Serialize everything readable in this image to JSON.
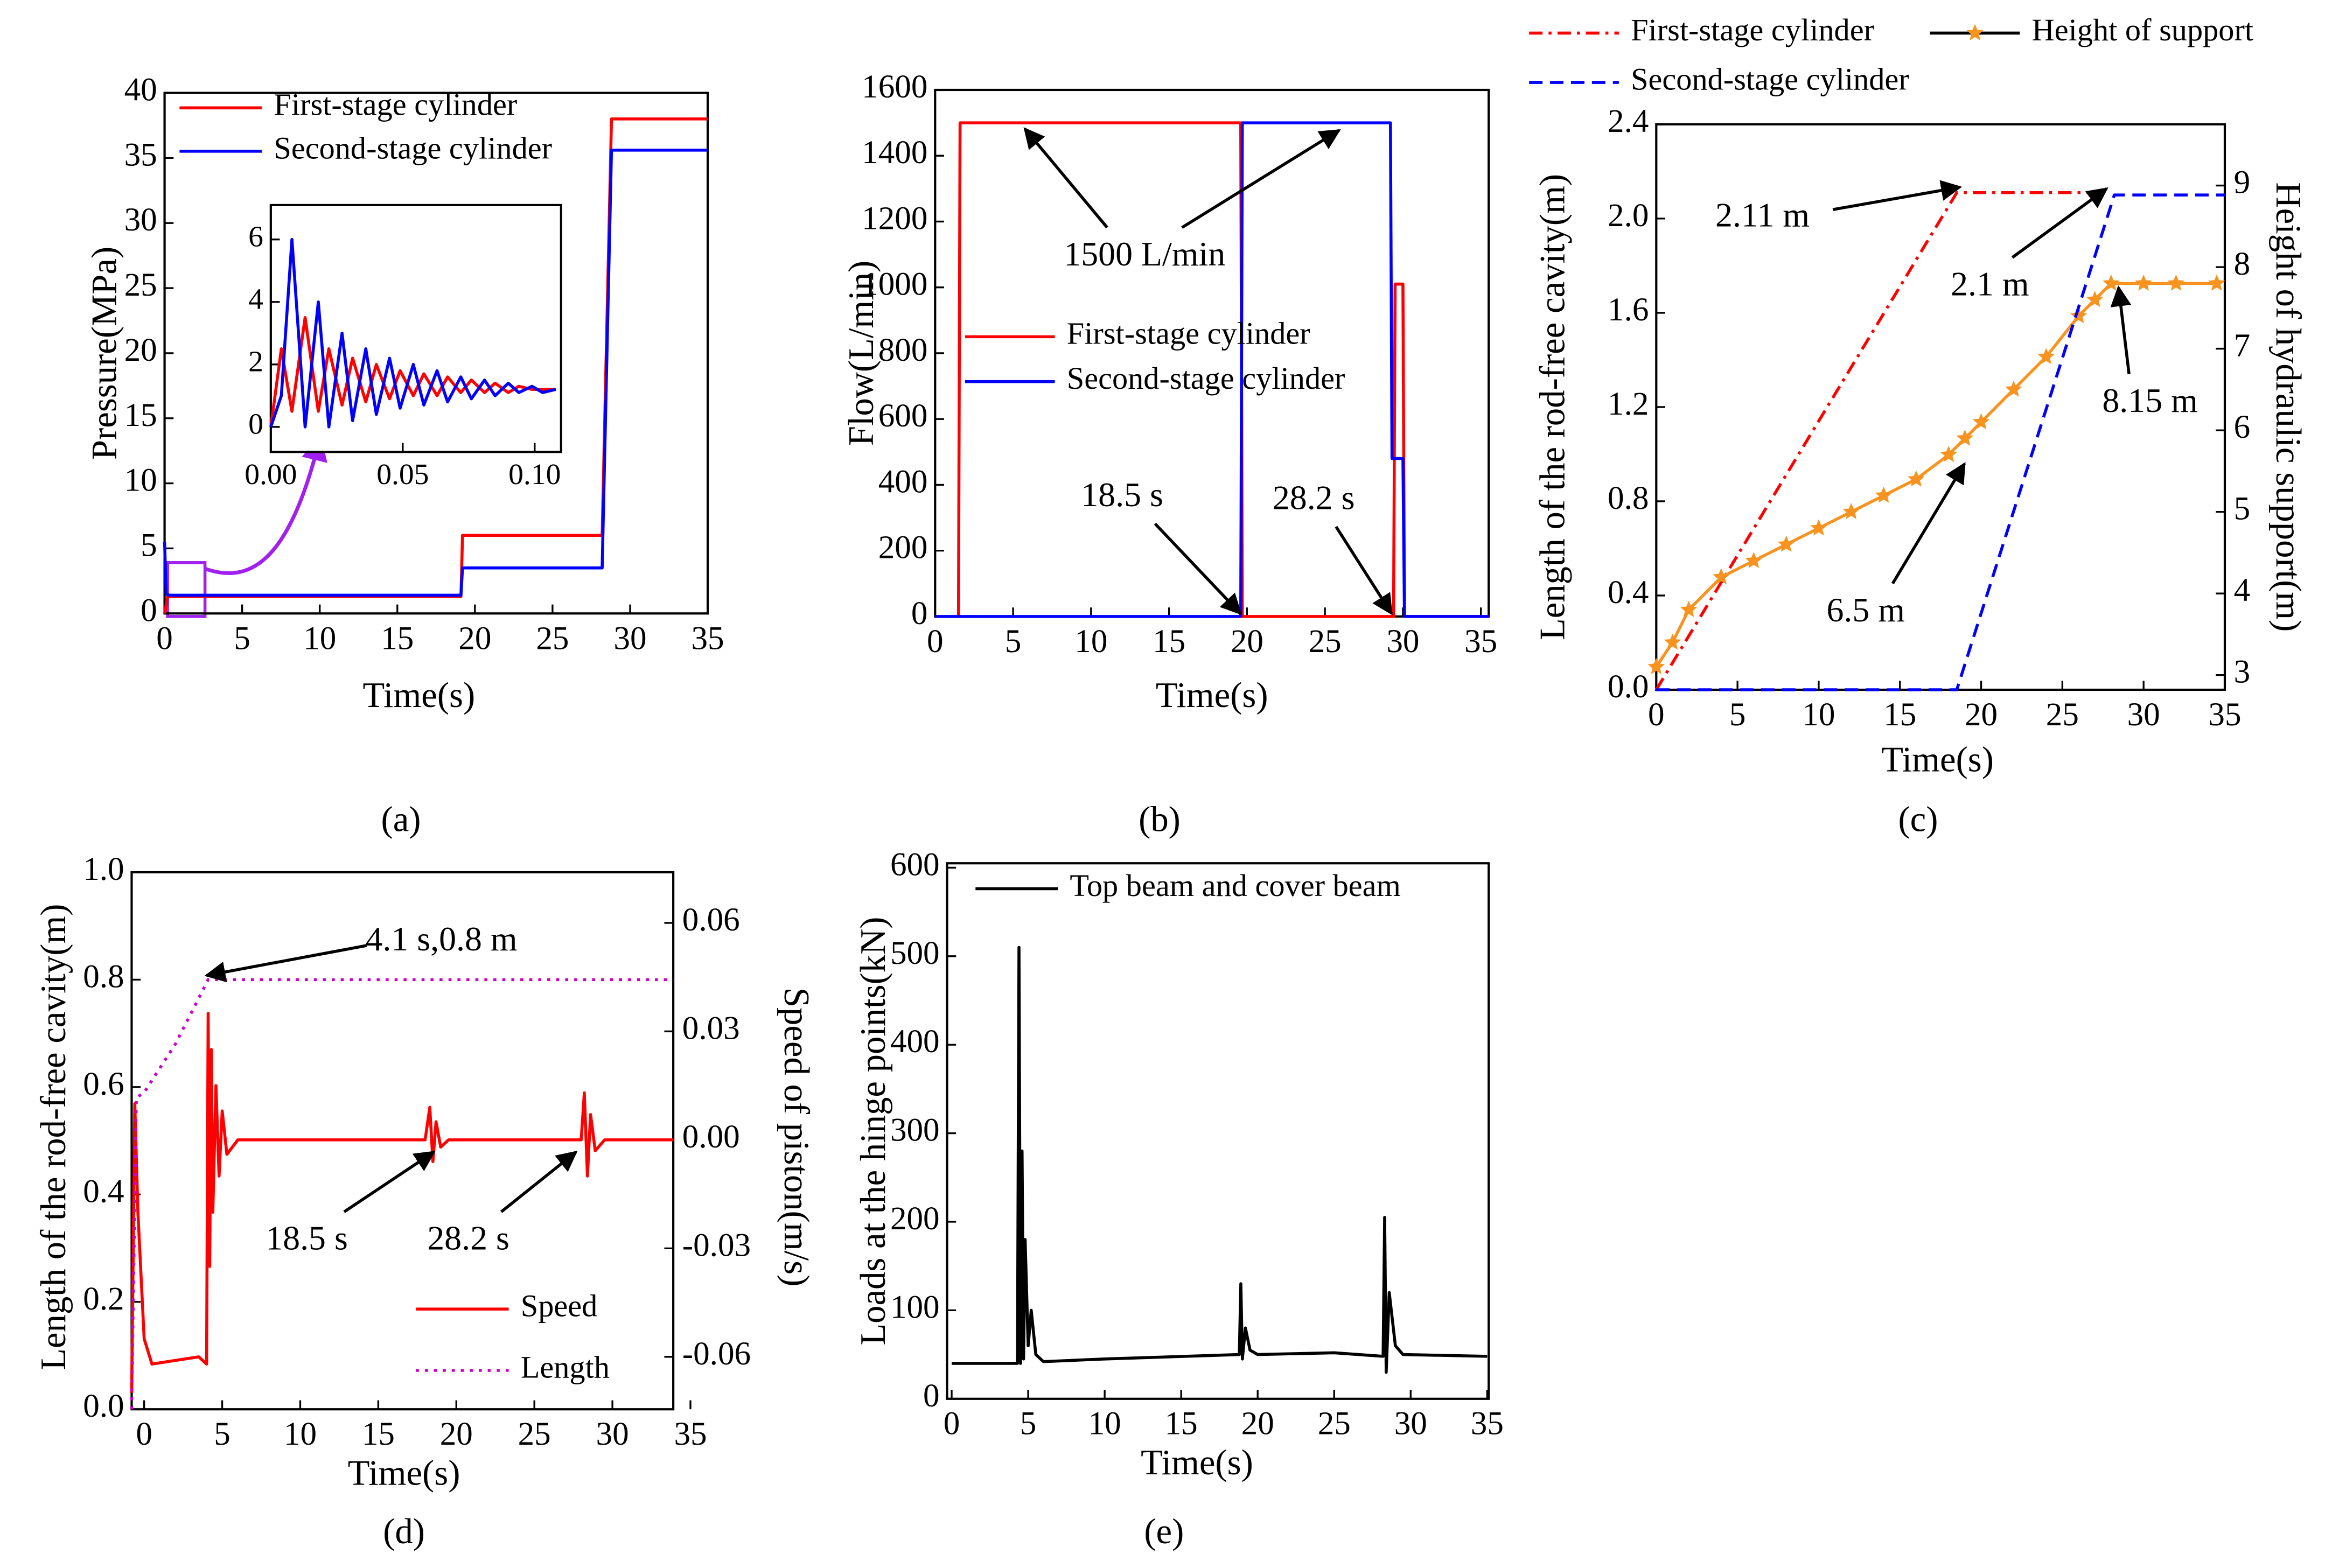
{
  "chart_data": [
    {
      "type": "line",
      "panel_label": "(a)",
      "xlabel": "Time(s)",
      "ylabel": "Pressure(MPa)",
      "xlim": [
        0,
        35
      ],
      "ylim": [
        0,
        40
      ],
      "xticks": [
        0,
        5,
        10,
        15,
        20,
        25,
        30,
        35
      ],
      "yticks": [
        0,
        5,
        10,
        15,
        20,
        25,
        30,
        35,
        40
      ],
      "legend": "upper left",
      "series": [
        {
          "name": "First-stage cylinder",
          "color": "#ff0000",
          "x": [
            0,
            0.2,
            19.1,
            19.2,
            28.2,
            28.8,
            35
          ],
          "values": [
            0,
            1.3,
            1.3,
            6,
            6,
            38,
            38
          ]
        },
        {
          "name": "Second-stage cylinder",
          "color": "#0000ff",
          "x": [
            0,
            0.1,
            0.3,
            19.1,
            19.2,
            28.2,
            28.8,
            35
          ],
          "values": [
            5.5,
            1.5,
            1.4,
            1.4,
            3.5,
            3.5,
            35.6,
            35.6
          ]
        }
      ],
      "inset": {
        "xlim": [
          0,
          0.11
        ],
        "ylim": [
          -0.8,
          7.1
        ],
        "xticks": [
          {
            "value": 0,
            "label": "0.00"
          },
          {
            "value": 0.05,
            "label": "0.05"
          },
          {
            "value": 0.1,
            "label": "0.10"
          }
        ],
        "yticks": [
          0,
          2,
          4,
          6
        ],
        "series": [
          {
            "color": "#ff0000",
            "x": [
              0,
              0.004,
              0.008,
              0.013,
              0.018,
              0.022,
              0.027,
              0.031,
              0.036,
              0.04,
              0.045,
              0.049,
              0.054,
              0.058,
              0.063,
              0.067,
              0.072,
              0.076,
              0.081,
              0.085,
              0.09,
              0.094,
              0.099,
              0.103,
              0.108
            ],
            "values": [
              0,
              2.5,
              0.5,
              3.5,
              0.5,
              2.5,
              0.7,
              2.2,
              0.8,
              2,
              0.9,
              1.8,
              1,
              1.7,
              1,
              1.6,
              1.1,
              1.5,
              1.1,
              1.4,
              1.1,
              1.3,
              1.2,
              1.2,
              1.2
            ]
          },
          {
            "color": "#0000ff",
            "x": [
              0,
              0.004,
              0.008,
              0.013,
              0.018,
              0.022,
              0.027,
              0.031,
              0.036,
              0.04,
              0.045,
              0.049,
              0.054,
              0.058,
              0.063,
              0.067,
              0.072,
              0.076,
              0.081,
              0.085,
              0.09,
              0.094,
              0.099,
              0.103,
              0.108
            ],
            "values": [
              0,
              1,
              6,
              0,
              4,
              0,
              3,
              0.2,
              2.5,
              0.4,
              2.2,
              0.6,
              2,
              0.7,
              1.8,
              0.8,
              1.6,
              0.9,
              1.5,
              1,
              1.4,
              1.1,
              1.3,
              1.1,
              1.2
            ]
          }
        ]
      }
    },
    {
      "type": "line",
      "panel_label": "(b)",
      "xlabel": "Time(s)",
      "ylabel": "Flow(L/min)",
      "xlim": [
        0,
        35.5
      ],
      "ylim": [
        0,
        1600
      ],
      "xticks": [
        0,
        5,
        10,
        15,
        20,
        25,
        30,
        35
      ],
      "yticks": [
        0,
        200,
        400,
        600,
        800,
        1000,
        1200,
        1400,
        1600
      ],
      "legend": "center left",
      "series": [
        {
          "name": "First-stage cylinder",
          "color": "#ff0000",
          "x": [
            1.5,
            1.6,
            19.6,
            19.7,
            29.4,
            29.5,
            30,
            30.1,
            35.5
          ],
          "values": [
            0,
            1500,
            1500,
            0,
            0,
            1010,
            1010,
            0,
            0
          ]
        },
        {
          "name": "Second-stage cylinder",
          "color": "#0000ff",
          "x": [
            0,
            19.6,
            19.7,
            29.2,
            29.3,
            30,
            30.1,
            35.5
          ],
          "values": [
            0,
            0,
            1500,
            1500,
            480,
            480,
            0,
            0
          ]
        }
      ],
      "annotations": [
        "1500 L/min",
        "18.5 s",
        "28.2 s"
      ]
    },
    {
      "type": "line",
      "panel_label": "(c)",
      "xlabel": "Time(s)",
      "ylabel": "Length of the rod-free cavity(m)",
      "y2label": "Height of hydraulic support(m)",
      "xlim": [
        0,
        35
      ],
      "ylim": [
        0,
        2.4
      ],
      "y2lim": [
        2.82,
        9.75
      ],
      "xticks": [
        0,
        5,
        10,
        15,
        20,
        25,
        30,
        35
      ],
      "yticks": [
        {
          "value": 0,
          "label": "0.0"
        },
        0.4,
        0.8,
        1.2,
        1.6,
        {
          "value": 2,
          "label": "2.0"
        },
        2.4
      ],
      "y2ticks": [
        3,
        4,
        5,
        6,
        7,
        8,
        9
      ],
      "legend": "above",
      "series": [
        {
          "name": "First-stage cylinder",
          "color": "#ff0000",
          "dash": "dashdot",
          "x": [
            0,
            18.5,
            27
          ],
          "values": [
            0,
            2.11,
            2.11
          ]
        },
        {
          "name": "Height of support",
          "color": "#f7931e",
          "marker": "star",
          "axis": "y2",
          "x": [
            0,
            1,
            2,
            4,
            6,
            8,
            10,
            12,
            14,
            16,
            18,
            19,
            20,
            22,
            24,
            26,
            27,
            28,
            30,
            32,
            34.5
          ],
          "values": [
            3.1,
            3.4,
            3.8,
            4.2,
            4.4,
            4.6,
            4.8,
            5,
            5.2,
            5.4,
            5.7,
            5.9,
            6.1,
            6.5,
            6.9,
            7.4,
            7.6,
            7.8,
            7.8,
            7.8,
            7.8
          ]
        },
        {
          "name": "Second-stage cylinder",
          "color": "#0000ff",
          "dash": "dashed",
          "x": [
            0,
            18.5,
            28.2,
            35
          ],
          "values": [
            0,
            0,
            2.1,
            2.1
          ]
        }
      ],
      "annotations": [
        "2.11 m",
        "2.1 m",
        "8.15 m",
        "6.5 m"
      ]
    },
    {
      "type": "line",
      "panel_label": "(d)",
      "xlabel": "Time(s)",
      "ylabel": "Length of the rod-free cavity(m)",
      "y2label": "Speed of piston(m/s)",
      "xlim": [
        -0.8,
        33.9
      ],
      "ylim": [
        0,
        1
      ],
      "y2lim": [
        -0.0745,
        0.074
      ],
      "xticks": [
        0,
        5,
        10,
        15,
        20,
        25,
        30,
        35
      ],
      "yticks": [
        {
          "value": 0,
          "label": "0.0"
        },
        0.2,
        0.4,
        0.6,
        0.8,
        {
          "value": 1,
          "label": "1.0"
        }
      ],
      "y2ticks": [
        -0.06,
        -0.03,
        {
          "value": 0,
          "label": "0.00"
        },
        0.03,
        0.06
      ],
      "legend": "lower right",
      "series": [
        {
          "name": "Speed",
          "color": "#ff0000",
          "axis": "y2",
          "x": [
            -0.8,
            -0.6,
            -0.4,
            0,
            0.5,
            2,
            3.5,
            4,
            4.1,
            4.2,
            4.3,
            4.4,
            4.6,
            4.8,
            5,
            5.3,
            6,
            18,
            18.3,
            18.5,
            18.7,
            19,
            19.5,
            28,
            28.2,
            28.4,
            28.6,
            28.9,
            29.5,
            33.9
          ],
          "values": [
            -0.07,
            0.01,
            -0.02,
            -0.055,
            -0.062,
            -0.061,
            -0.06,
            -0.062,
            0.035,
            -0.035,
            0.025,
            -0.02,
            0.015,
            -0.01,
            0.008,
            -0.004,
            0,
            0,
            0.009,
            -0.006,
            0.005,
            -0.002,
            0,
            0,
            0.013,
            -0.01,
            0.007,
            -0.003,
            0,
            0
          ]
        },
        {
          "name": "Length",
          "color": "#cc00cc",
          "dash": "dotted",
          "x": [
            -0.8,
            -0.5,
            0,
            2,
            4.1,
            33.9
          ],
          "values": [
            0,
            0.58,
            0.59,
            0.68,
            0.8,
            0.8
          ]
        }
      ],
      "annotations": [
        "4.1 s,0.8 m",
        "18.5 s",
        "28.2 s"
      ]
    },
    {
      "type": "line",
      "panel_label": "(e)",
      "xlabel": "Time(s)",
      "ylabel": "Loads at the hinge points(kN)",
      "xlim": [
        -0.3,
        35.1
      ],
      "ylim": [
        0,
        605
      ],
      "xticks": [
        0,
        5,
        10,
        15,
        20,
        25,
        30,
        35
      ],
      "yticks": [
        0,
        100,
        200,
        300,
        400,
        500,
        600
      ],
      "legend": "upper left",
      "series": [
        {
          "name": "Top beam and cover beam",
          "color": "#000000",
          "x": [
            0,
            4.3,
            4.4,
            4.5,
            4.6,
            4.7,
            4.8,
            5,
            5.2,
            5.5,
            6,
            10,
            18.8,
            18.9,
            19,
            19.2,
            19.5,
            20,
            25,
            28.2,
            28.3,
            28.4,
            28.6,
            29,
            29.5,
            35
          ],
          "values": [
            40,
            40,
            510,
            40,
            280,
            45,
            180,
            60,
            100,
            50,
            42,
            45,
            50,
            130,
            45,
            80,
            55,
            50,
            52,
            48,
            205,
            30,
            120,
            60,
            50,
            48
          ]
        }
      ]
    }
  ]
}
